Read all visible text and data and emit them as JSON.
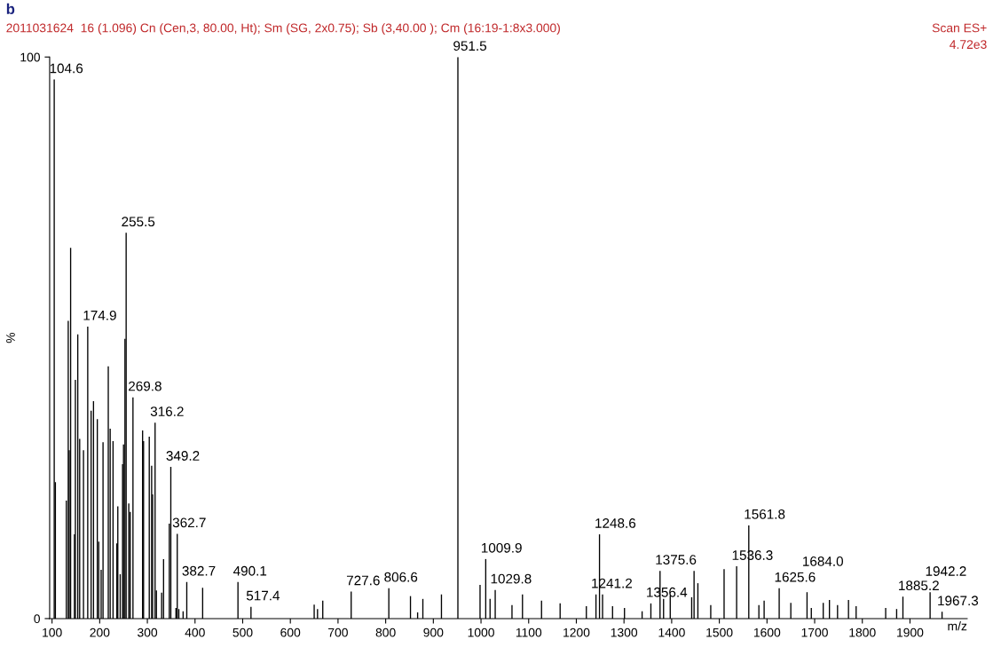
{
  "chart_data": {
    "type": "bar",
    "title": "b",
    "subtitle": "2011031624  16 (1.096) Cn (Cen,3, 80.00, Ht); Sm (SG, 2x0.75); Sb (3,40.00 ); Cm (16:19-1:8x3.000)",
    "xlabel": "m/z",
    "ylabel": "%",
    "x": [
      104.6,
      107,
      130,
      134,
      136,
      139,
      147,
      149,
      154,
      158,
      166,
      174.9,
      182,
      187,
      195,
      198,
      203,
      207,
      218,
      222,
      228,
      236,
      238,
      243,
      248,
      250,
      253,
      255.5,
      261,
      264,
      269.8,
      290,
      292,
      304,
      309,
      311,
      316.2,
      319,
      330,
      334,
      346,
      349.2,
      360,
      362.7,
      366,
      375,
      382.7,
      416,
      490.1,
      517.4,
      650,
      657,
      668,
      727.6,
      806.6,
      852,
      867,
      878,
      917,
      951.5,
      998,
      1009.9,
      1019,
      1029.8,
      1065,
      1087,
      1127,
      1166,
      1221,
      1241.2,
      1248.6,
      1255,
      1276,
      1301,
      1338,
      1356.4,
      1375.6,
      1383,
      1397,
      1442,
      1447,
      1455,
      1482,
      1510,
      1536.3,
      1561.8,
      1583,
      1594,
      1625.6,
      1650,
      1684,
      1693,
      1718,
      1731,
      1748,
      1771,
      1787,
      1849,
      1872,
      1885.2,
      1942.2,
      1967.3
    ],
    "series": [
      {
        "color": "#000000",
        "values": [
          96,
          24.3,
          21,
          53,
          30,
          66,
          15,
          42.5,
          50.6,
          32,
          30,
          52,
          37,
          38.7,
          35.5,
          13.7,
          8.7,
          31.4,
          44.9,
          33.8,
          31.6,
          13.4,
          20,
          7.9,
          27.5,
          31,
          49.8,
          68.7,
          20.5,
          19,
          39.4,
          33.5,
          31.6,
          32.4,
          27.2,
          22.1,
          34.9,
          5,
          4.6,
          10.6,
          16.9,
          27,
          1.9,
          15.1,
          1.7,
          1.3,
          6.5,
          5.5,
          6.5,
          2.1,
          2.5,
          1.7,
          3.2,
          4.8,
          5.4,
          4,
          1.1,
          3.5,
          4.3,
          100,
          6,
          10.6,
          3.5,
          5.1,
          2.4,
          4.3,
          3.2,
          2.7,
          2.2,
          4.3,
          15,
          4.3,
          2.2,
          1.9,
          1.3,
          2.7,
          8.5,
          3.5,
          4.1,
          3.8,
          8.5,
          6.3,
          2.4,
          8.8,
          9.3,
          16.6,
          2.4,
          3.2,
          5.4,
          2.8,
          4.7,
          1.9,
          2.8,
          3.3,
          2.4,
          3.3,
          2.2,
          1.9,
          1.7,
          3.9,
          4.7,
          1.2
        ]
      }
    ],
    "xlim": [
      95,
      2020
    ],
    "xticks": [
      100,
      200,
      300,
      400,
      500,
      600,
      700,
      800,
      900,
      1000,
      1100,
      1200,
      1300,
      1400,
      1500,
      1600,
      1700,
      1800,
      1900
    ],
    "ylim": [
      0,
      100
    ],
    "yticks": [
      0,
      100
    ],
    "grid": false,
    "legend": false,
    "annotations": [
      "Scan ES+",
      "4.72e3",
      {
        "text": "104.6",
        "x": 104.6,
        "y": 96
      },
      {
        "text": "951.5",
        "x": 951.5,
        "y": 100
      },
      {
        "text": "255.5",
        "x": 255.5,
        "y": 68.7
      },
      {
        "text": "174.9",
        "x": 174.9,
        "y": 52
      },
      {
        "text": "269.8",
        "x": 269.8,
        "y": 39.4
      },
      {
        "text": "316.2",
        "x": 316.2,
        "y": 34.9
      },
      {
        "text": "349.2",
        "x": 349.2,
        "y": 27
      },
      {
        "text": "362.7",
        "x": 362.7,
        "y": 15.1
      },
      {
        "text": "382.7",
        "x": 382.7,
        "y": 6.5
      },
      {
        "text": "490.1",
        "x": 490.1,
        "y": 6.5
      },
      {
        "text": "517.4",
        "x": 517.4,
        "y": 2.1
      },
      {
        "text": "727.6",
        "x": 727.6,
        "y": 4.8
      },
      {
        "text": "806.6",
        "x": 806.6,
        "y": 5.4
      },
      {
        "text": "1009.9",
        "x": 1009.9,
        "y": 10.6
      },
      {
        "text": "1029.8",
        "x": 1029.8,
        "y": 5.1
      },
      {
        "text": "1241.2",
        "x": 1241.2,
        "y": 4.3
      },
      {
        "text": "1248.6",
        "x": 1248.6,
        "y": 15
      },
      {
        "text": "1356.4",
        "x": 1356.4,
        "y": 2.7
      },
      {
        "text": "1375.6",
        "x": 1375.6,
        "y": 8.5
      },
      {
        "text": "1536.3",
        "x": 1536.3,
        "y": 9.3
      },
      {
        "text": "1561.8",
        "x": 1561.8,
        "y": 16.6
      },
      {
        "text": "1625.6",
        "x": 1625.6,
        "y": 5.4
      },
      {
        "text": "1684.0",
        "x": 1684,
        "y": 4.7
      },
      {
        "text": "1885.2",
        "x": 1885.2,
        "y": 3.9
      },
      {
        "text": "1942.2",
        "x": 1942.2,
        "y": 4.7
      },
      {
        "text": "1967.3",
        "x": 1967.3,
        "y": 1.2
      }
    ]
  }
}
